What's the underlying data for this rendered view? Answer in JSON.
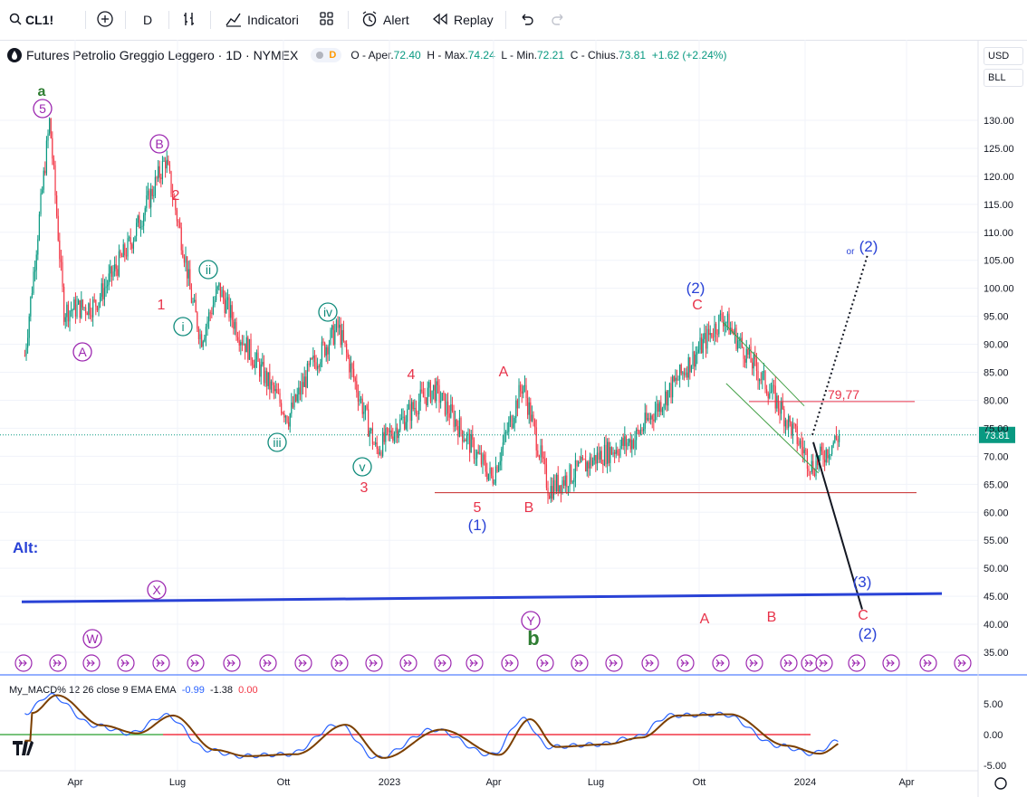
{
  "toolbar": {
    "symbol": "CL1!",
    "interval": "D",
    "indicators_label": "Indicatori",
    "alert_label": "Alert",
    "replay_label": "Replay"
  },
  "legend": {
    "title": "Futures Petrolio Greggio Leggero · 1D · NYMEX",
    "badge": "D",
    "o_label": "O - Aper.",
    "o_value": "72.40",
    "h_label": "H - Max.",
    "h_value": "74.24",
    "l_label": "L - Min.",
    "l_value": "72.21",
    "c_label": "C - Chius.",
    "c_value": "73.81",
    "change": "+1.62 (+2.24%)"
  },
  "scale_controls": {
    "currency": "USD",
    "unit": "BLL"
  },
  "macd_legend": {
    "name": "My_MACD% 12 26 close 9 EMA EMA",
    "v1": "-0.99",
    "v2": "-1.38",
    "v3": "0.00"
  },
  "alt_label": "Alt:",
  "colors": {
    "up": "#089981",
    "down": "#f23645",
    "wave_blue": "#2942d6",
    "wave_red": "#e8334a",
    "wave_purple": "#9c27b0",
    "wave_teal": "#0f8b7b",
    "wave_green": "#2e7d32"
  },
  "chart_data": {
    "type": "candlestick",
    "symbol": "CL1!",
    "x_ticks": [
      "Apr",
      "Lug",
      "Ott",
      "2023",
      "Apr",
      "Lug",
      "Ott",
      "2024",
      "Apr"
    ],
    "y_ticks": [
      "130.00",
      "125.00",
      "120.00",
      "115.00",
      "110.00",
      "105.00",
      "100.00",
      "95.00",
      "90.00",
      "85.00",
      "80.00",
      "75.00",
      "70.00",
      "65.00",
      "60.00",
      "55.00",
      "50.00",
      "45.00",
      "40.00",
      "35.00"
    ],
    "ylim": [
      31,
      140
    ],
    "last_price": "73.81",
    "price_path": [
      {
        "t": "2022-02",
        "v": 88
      },
      {
        "t": "2022-03-08",
        "v": 130
      },
      {
        "t": "2022-03-20",
        "v": 96
      },
      {
        "t": "2022-04",
        "v": 97
      },
      {
        "t": "2022-05",
        "v": 108
      },
      {
        "t": "2022-06-14",
        "v": 123
      },
      {
        "t": "2022-07-01",
        "v": 105
      },
      {
        "t": "2022-07-05",
        "v": 99
      },
      {
        "t": "2022-07-14",
        "v": 91
      },
      {
        "t": "2022-07-29",
        "v": 100
      },
      {
        "t": "2022-08",
        "v": 92
      },
      {
        "t": "2022-09-26",
        "v": 77
      },
      {
        "t": "2022-10",
        "v": 86
      },
      {
        "t": "2022-11-07",
        "v": 93
      },
      {
        "t": "2022-12-09",
        "v": 71
      },
      {
        "t": "2023-01",
        "v": 80
      },
      {
        "t": "2023-01-27",
        "v": 82
      },
      {
        "t": "2023-02",
        "v": 76
      },
      {
        "t": "2023-03-17",
        "v": 66
      },
      {
        "t": "2023-04-12",
        "v": 83
      },
      {
        "t": "2023-05-04",
        "v": 64
      },
      {
        "t": "2023-06",
        "v": 70
      },
      {
        "t": "2023-07",
        "v": 73
      },
      {
        "t": "2023-08",
        "v": 82
      },
      {
        "t": "2023-09-28",
        "v": 95
      },
      {
        "t": "2023-11",
        "v": 79
      },
      {
        "t": "2023-12-13",
        "v": 68
      },
      {
        "t": "2024-01-05",
        "v": 73.81
      }
    ],
    "channel": {
      "upper": [
        {
          "t": "2023-09-28",
          "v": 94
        },
        {
          "t": "2023-12-06",
          "v": 79
        }
      ],
      "lower": [
        {
          "t": "2023-10-01",
          "v": 83
        },
        {
          "t": "2023-12-18",
          "v": 67
        }
      ]
    },
    "levels": [
      {
        "label": "79,77",
        "value": 79.77
      },
      {
        "label": "",
        "value": 63.5
      }
    ],
    "projection": {
      "alternate": [
        {
          "t": "2024-01-05",
          "v": 73.81
        },
        {
          "t": "2024-02-20",
          "v": 106
        }
      ],
      "primary": [
        {
          "t": "2024-01-05",
          "v": 73.81
        },
        {
          "t": "2024-02-15",
          "v": 53
        }
      ]
    },
    "support_line": [
      {
        "t": "2022-01",
        "v": 44
      },
      {
        "t": "2024-04",
        "v": 45
      }
    ],
    "wave_labels": [
      {
        "text": "a",
        "color": "green",
        "circle": false
      },
      {
        "text": "5",
        "color": "purple",
        "circle": true
      },
      {
        "text": "B",
        "color": "purple",
        "circle": true
      },
      {
        "text": "A",
        "color": "purple",
        "circle": true
      },
      {
        "text": "2",
        "color": "red",
        "circle": false
      },
      {
        "text": "1",
        "color": "red",
        "circle": false
      },
      {
        "text": "ii",
        "color": "teal",
        "circle": true
      },
      {
        "text": "i",
        "color": "teal",
        "circle": true
      },
      {
        "text": "iv",
        "color": "teal",
        "circle": true
      },
      {
        "text": "iii",
        "color": "teal",
        "circle": true
      },
      {
        "text": "v",
        "color": "teal",
        "circle": true
      },
      {
        "text": "3",
        "color": "red",
        "circle": false
      },
      {
        "text": "4",
        "color": "red",
        "circle": false
      },
      {
        "text": "5",
        "color": "red",
        "circle": false
      },
      {
        "text": "(1)",
        "color": "blue",
        "circle": false
      },
      {
        "text": "A",
        "color": "red",
        "circle": false
      },
      {
        "text": "B",
        "color": "red",
        "circle": false
      },
      {
        "text": "(2)",
        "color": "blue",
        "circle": false
      },
      {
        "text": "C",
        "color": "red",
        "circle": false
      },
      {
        "text": "or",
        "color": "blue",
        "circle": false
      },
      {
        "text": "(2)",
        "color": "blue",
        "circle": false
      },
      {
        "text": "(3)",
        "color": "blue",
        "circle": false
      },
      {
        "text": "X",
        "color": "purple",
        "circle": true
      },
      {
        "text": "W",
        "color": "purple",
        "circle": true
      },
      {
        "text": "Y",
        "color": "purple",
        "circle": true
      },
      {
        "text": "b",
        "color": "green",
        "circle": false
      },
      {
        "text": "A",
        "color": "red",
        "circle": false
      },
      {
        "text": "B",
        "color": "red",
        "circle": false
      },
      {
        "text": "C",
        "color": "red",
        "circle": false
      },
      {
        "text": "(2)",
        "color": "blue",
        "circle": false
      }
    ],
    "macd": {
      "y_ticks": [
        "5.00",
        "0.00",
        "-5.00"
      ],
      "ylim": [
        -6,
        7.5
      ],
      "series": [
        {
          "name": "MACD",
          "color": "#2962ff"
        },
        {
          "name": "Signal",
          "color": "#7b3f00"
        }
      ],
      "values": [
        {
          "t": "2022-02",
          "v": 3.5
        },
        {
          "t": "2022-03-08",
          "v": 6.4
        },
        {
          "t": "2022-04",
          "v": 1.5
        },
        {
          "t": "2022-05",
          "v": 0.2
        },
        {
          "t": "2022-06-14",
          "v": 3.1
        },
        {
          "t": "2022-07-20",
          "v": -2.5
        },
        {
          "t": "2022-08",
          "v": -3.5
        },
        {
          "t": "2022-09-26",
          "v": -3.2
        },
        {
          "t": "2022-11-07",
          "v": 1.6
        },
        {
          "t": "2022-12-09",
          "v": -3.8
        },
        {
          "t": "2023-01-27",
          "v": 0.8
        },
        {
          "t": "2023-03-17",
          "v": -3.3
        },
        {
          "t": "2023-04-12",
          "v": 2.5
        },
        {
          "t": "2023-05-04",
          "v": -2.0
        },
        {
          "t": "2023-06",
          "v": -1.6
        },
        {
          "t": "2023-07",
          "v": -0.5
        },
        {
          "t": "2023-08",
          "v": 3.1
        },
        {
          "t": "2023-09-28",
          "v": 3.3
        },
        {
          "t": "2023-11",
          "v": -1.8
        },
        {
          "t": "2023-12-13",
          "v": -3.1
        },
        {
          "t": "2024-01-05",
          "v": -0.99
        }
      ],
      "zero_line_color": "#4caf50",
      "signal_line_color": "#f23645"
    }
  }
}
